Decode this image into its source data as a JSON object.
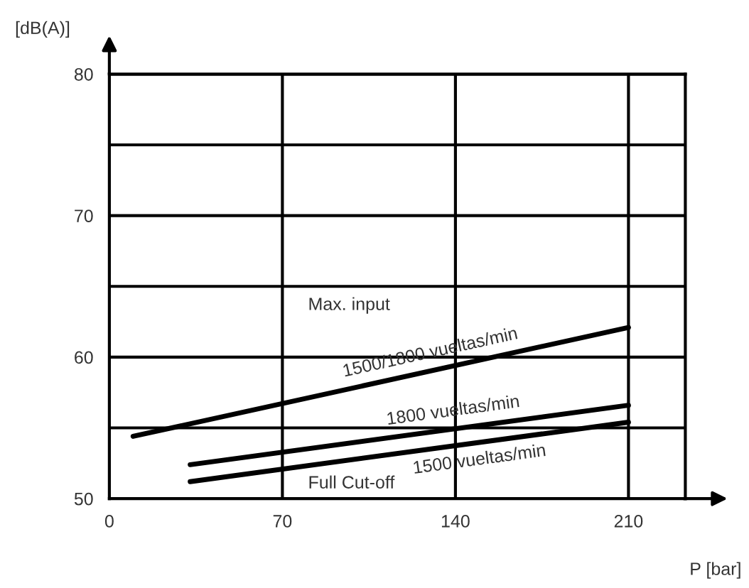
{
  "chart_data": {
    "type": "line",
    "xlabel": "P [bar]",
    "ylabel": "[dB(A)]",
    "xlim": [
      0,
      233
    ],
    "xticks": [
      0,
      70,
      140,
      210
    ],
    "ylim": [
      50,
      80
    ],
    "yticks": [
      50,
      {
        "value": 55,
        "label": null
      },
      60,
      {
        "value": 65,
        "label": null
      },
      70,
      {
        "value": 75,
        "label": null
      },
      80
    ],
    "grid": true,
    "legend": false,
    "marker": "none",
    "line_style": "solid",
    "series": [
      {
        "name": "1500/1800 vueltas/min",
        "color": "#000000",
        "x": [
          9.6,
          210
        ],
        "values": [
          54.4,
          62.1
        ]
      },
      {
        "name": "1800 vueltas/min",
        "color": "#000000",
        "x": [
          32.7,
          210
        ],
        "values": [
          52.4,
          56.6
        ]
      },
      {
        "name": "1500 vueltas/min",
        "color": "#000000",
        "x": [
          32.7,
          210
        ],
        "values": [
          51.2,
          55.4
        ]
      }
    ],
    "annotations": [
      "Max. input",
      "Full Cut-off"
    ]
  }
}
